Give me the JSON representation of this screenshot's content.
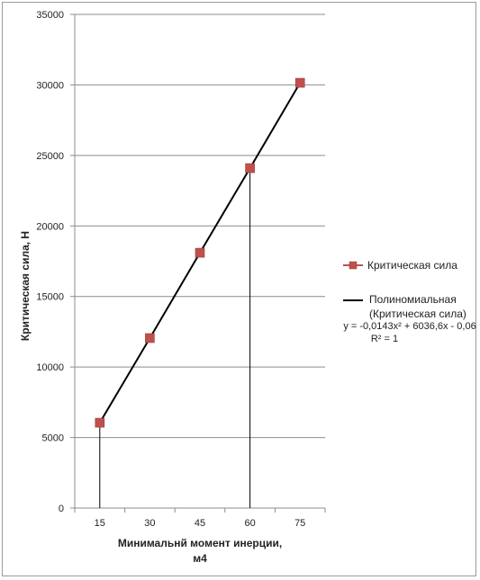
{
  "chart_data": {
    "type": "line",
    "xlabel_line1": "Минимальнй момент инерции,",
    "xlabel_line2": "м4",
    "ylabel": "Критическая сила, Н",
    "categories": [
      "15",
      "30",
      "45",
      "60",
      "75"
    ],
    "y_ticks": [
      "0",
      "5000",
      "10000",
      "15000",
      "20000",
      "25000",
      "30000",
      "35000"
    ],
    "ylim": [
      0,
      35000
    ],
    "grid": true,
    "legend_position": "right",
    "series": [
      {
        "name": "Критическая сила",
        "x": [
          15,
          30,
          45,
          60,
          75
        ],
        "values": [
          6050,
          12050,
          18100,
          24100,
          30150
        ],
        "color": "#c0504d",
        "marker": "square"
      }
    ],
    "trendline": {
      "name_line1": "Полиномиальная",
      "name_line2": "(Критическая сила)",
      "equation": "y = -0,0143x² + 6036,6x - 0,06",
      "r2": "R² = 1",
      "color": "#000000"
    },
    "drop_lines_at": [
      15,
      60
    ]
  }
}
